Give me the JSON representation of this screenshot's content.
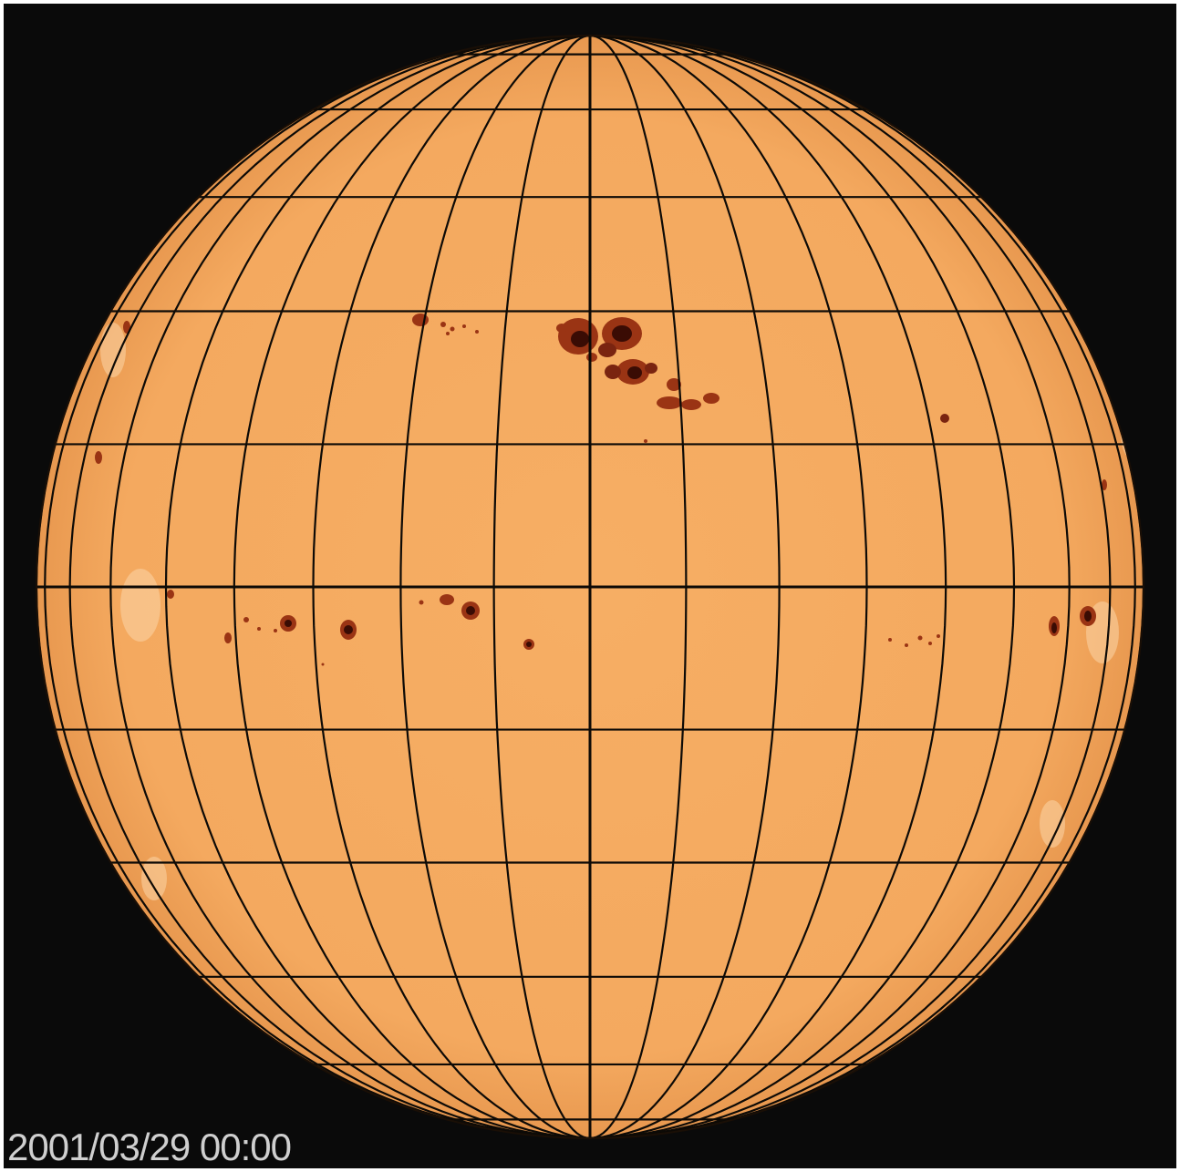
{
  "image": {
    "timestamp": "2001/03/29 00:00",
    "colors": {
      "background": "#0a0a0a",
      "disk": "#f4ab62",
      "disk_edge": "#e89a52",
      "grid": "#0d0a06",
      "sunspot_umbra": "#3a0c04",
      "sunspot_penumbra": "#9a3414",
      "plage": "#fbd3a2"
    },
    "grid": {
      "parallels_deg": [
        -75,
        -60,
        -45,
        -30,
        -15,
        0,
        15,
        30,
        45,
        60,
        75
      ],
      "meridians_deg": [
        -90,
        -80,
        -70,
        -60,
        -50,
        -40,
        -30,
        -20,
        -10,
        0,
        10,
        20,
        30,
        40,
        50,
        60,
        70,
        80,
        90
      ]
    }
  }
}
